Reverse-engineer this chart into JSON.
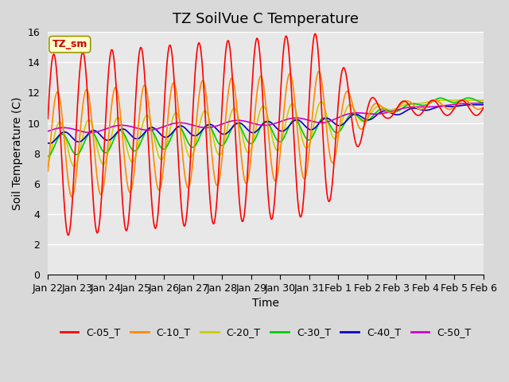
{
  "title": "TZ SoilVue C Temperature",
  "xlabel": "Time",
  "ylabel": "Soil Temperature (C)",
  "ylim": [
    0,
    16
  ],
  "yticks": [
    0,
    2,
    4,
    6,
    8,
    10,
    12,
    14,
    16
  ],
  "background_color": "#d9d9d9",
  "plot_bg_color": "#e8e8e8",
  "legend_label": "TZ_sm",
  "series_colors": {
    "C-05_T": "#ff0000",
    "C-10_T": "#ff8800",
    "C-20_T": "#cccc00",
    "C-30_T": "#00cc00",
    "C-40_T": "#0000cc",
    "C-50_T": "#cc00cc"
  },
  "n_days": 15,
  "x_tick_positions": [
    0,
    1,
    2,
    3,
    4,
    5,
    6,
    7,
    8,
    9,
    10,
    11,
    12,
    13,
    14,
    15
  ],
  "x_tick_labels": [
    "Jan 22",
    "Jan 23",
    "Jan 24",
    "Jan 25",
    "Jan 26",
    "Jan 27",
    "Jan 28",
    "Jan 29",
    "Jan 30",
    "Jan 31",
    "Feb 1",
    "Feb 2",
    "Feb 3",
    "Feb 4",
    "Feb 5",
    "Feb 6"
  ],
  "title_fontsize": 13,
  "axis_label_fontsize": 10,
  "tick_fontsize": 9
}
